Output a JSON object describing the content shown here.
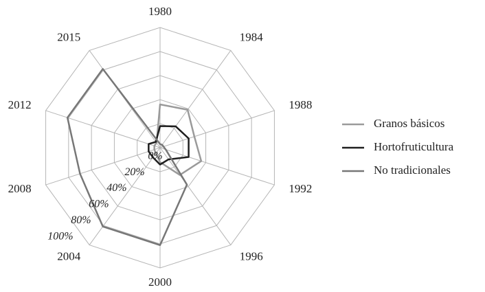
{
  "chart_data": {
    "type": "radar",
    "categories": [
      "1980",
      "1984",
      "1988",
      "1992",
      "1996",
      "2000",
      "2004",
      "2008",
      "2012",
      "2015"
    ],
    "series": [
      {
        "name": "Granos básicos",
        "color": "#9a9a9a",
        "values": [
          36,
          39,
          30,
          36,
          28,
          12,
          6,
          5,
          5,
          5
        ]
      },
      {
        "name": "Hortofruticultura",
        "color": "#1e1e1e",
        "values": [
          18,
          22,
          25,
          25,
          12,
          14,
          10,
          10,
          10,
          6
        ]
      },
      {
        "name": "No tradicionales",
        "color": "#777777",
        "values": [
          3,
          3,
          3,
          5,
          38,
          81,
          81,
          70,
          81,
          81
        ]
      }
    ],
    "ylim": [
      0,
      100
    ],
    "yticks": [
      {
        "value": 0,
        "label": "0%"
      },
      {
        "value": 20,
        "label": "20%"
      },
      {
        "value": 40,
        "label": "40%"
      },
      {
        "value": 60,
        "label": "60%"
      },
      {
        "value": 80,
        "label": "80%"
      },
      {
        "value": 100,
        "label": "100%"
      }
    ],
    "grid": true,
    "legend": "right"
  }
}
